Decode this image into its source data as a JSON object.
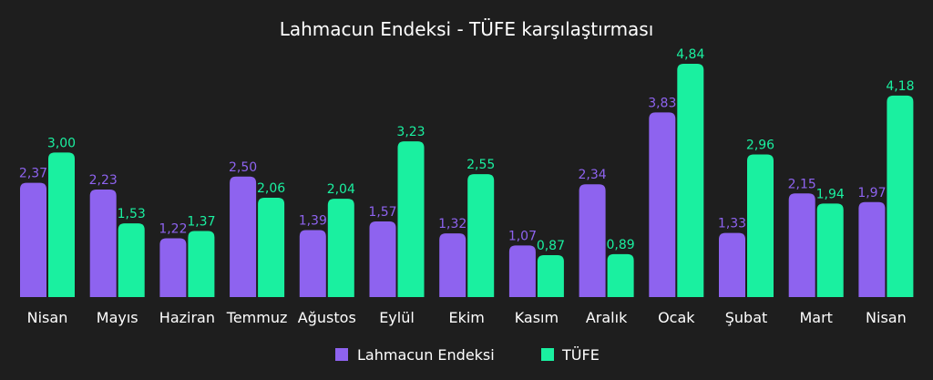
{
  "chart_data": {
    "type": "bar",
    "title": "Lahmacun Endeksi - TÜFE karşılaştırması",
    "xlabel": "",
    "ylabel": "",
    "ylim": [
      0,
      4.84
    ],
    "grid": false,
    "legend_position": "bottom",
    "categories": [
      "Nisan",
      "Mayıs",
      "Haziran",
      "Temmuz",
      "Ağustos",
      "Eylül",
      "Ekim",
      "Kasım",
      "Aralık",
      "Ocak",
      "Şubat",
      "Mart",
      "Nisan"
    ],
    "series": [
      {
        "name": "Lahmacun Endeksi",
        "color": "#8e63ef",
        "values": [
          2.37,
          2.23,
          1.22,
          2.5,
          1.39,
          1.57,
          1.32,
          1.07,
          2.34,
          3.83,
          1.33,
          2.15,
          1.97
        ],
        "labels": [
          "2,37",
          "2,23",
          "1,22",
          "2,50",
          "1,39",
          "1,57",
          "1,32",
          "1,07",
          "2,34",
          "3,83",
          "1,33",
          "2,15",
          "1,97"
        ]
      },
      {
        "name": "TÜFE",
        "color": "#1af0a0",
        "values": [
          3.0,
          1.53,
          1.37,
          2.06,
          2.04,
          3.23,
          2.55,
          0.87,
          0.89,
          4.84,
          2.96,
          1.94,
          4.18
        ],
        "labels": [
          "3,00",
          "1,53",
          "1,37",
          "2,06",
          "2,04",
          "3,23",
          "2,55",
          "0,87",
          "0,89",
          "4,84",
          "2,96",
          "1,94",
          "4,18"
        ]
      }
    ]
  }
}
